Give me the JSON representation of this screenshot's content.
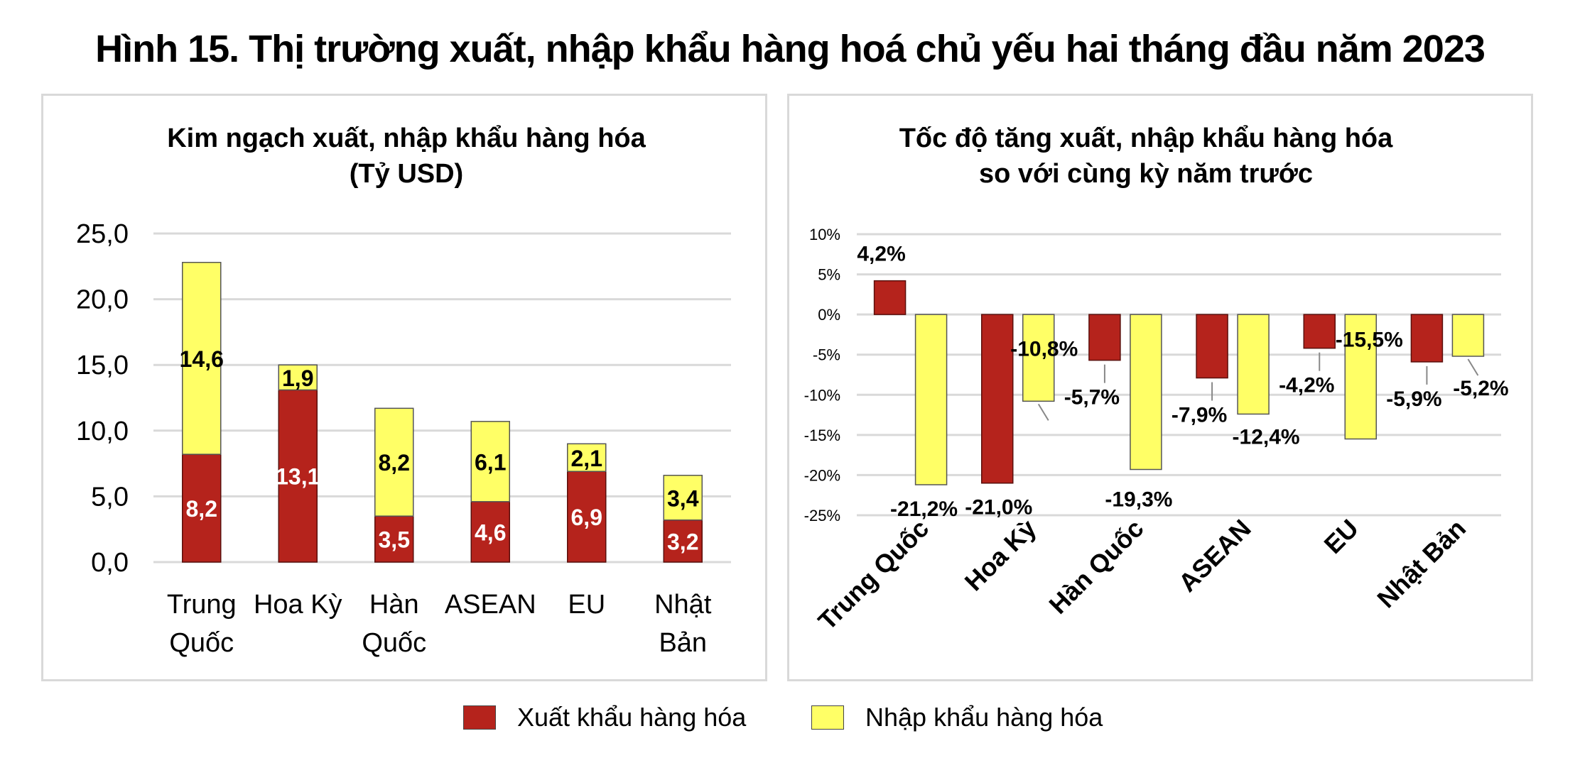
{
  "title": "Hình 15. Thị trường xuất, nhập khẩu hàng hoá chủ yếu hai tháng đầu năm 2023",
  "colors": {
    "export": "#B5231C",
    "import": "#FFFF66",
    "grid": "#d9d9d9",
    "border": "#d9d9d9"
  },
  "legend": {
    "export_label": "Xuất khẩu hàng hóa",
    "import_label": "Nhập khẩu hàng hóa"
  },
  "chart_data": [
    {
      "type": "bar",
      "stacked": true,
      "title": "Kim ngạch xuất, nhập khẩu hàng hóa",
      "subtitle": "(Tỷ USD)",
      "categories": [
        [
          "Trung",
          "Quốc"
        ],
        [
          "Hoa Kỳ"
        ],
        [
          "Hàn",
          "Quốc"
        ],
        [
          "ASEAN"
        ],
        [
          "EU"
        ],
        [
          "Nhật",
          "Bản"
        ]
      ],
      "series": [
        {
          "name": "Xuất khẩu hàng hóa",
          "values": [
            8.2,
            13.1,
            3.5,
            4.6,
            6.9,
            3.2
          ],
          "labels": [
            "8,2",
            "13,1",
            "3,5",
            "4,6",
            "6,9",
            "3,2"
          ]
        },
        {
          "name": "Nhập khẩu hàng hóa",
          "values": [
            14.6,
            1.9,
            8.2,
            6.1,
            2.1,
            3.4
          ],
          "labels": [
            "14,6",
            "1,9",
            "8,2",
            "6,1",
            "2,1",
            "3,4"
          ]
        }
      ],
      "ylim": [
        0,
        25
      ],
      "yticks": [
        0,
        5,
        10,
        15,
        20,
        25
      ],
      "yticklabels": [
        "0,0",
        "5,0",
        "10,0",
        "15,0",
        "20,0",
        "25,0"
      ],
      "grid": true
    },
    {
      "type": "bar",
      "stacked": false,
      "title": "Tốc độ tăng xuất, nhập khẩu hàng hóa",
      "subtitle": "so với cùng kỳ năm trước",
      "categories": [
        "Trung Quốc",
        "Hoa Kỳ",
        "Hàn Quốc",
        "ASEAN",
        "EU",
        "Nhật Bản"
      ],
      "series": [
        {
          "name": "Xuất khẩu hàng hóa",
          "values": [
            4.2,
            -21.0,
            -5.7,
            -7.9,
            -4.2,
            -5.9
          ],
          "labels": [
            "4,2%",
            "-21,0%",
            "-5,7%",
            "-7,9%",
            "-4,2%",
            "-5,9%"
          ]
        },
        {
          "name": "Nhập khẩu hàng hóa",
          "values": [
            -21.2,
            -10.8,
            -19.3,
            -12.4,
            -15.5,
            -5.2
          ],
          "labels": [
            "-21,2%",
            "-10,8%",
            "-19,3%",
            "-12,4%",
            "-15,5%",
            "-5,2%"
          ]
        }
      ],
      "ylim": [
        -25,
        10
      ],
      "yticks": [
        -25,
        -20,
        -15,
        -10,
        -5,
        0,
        5,
        10
      ],
      "yticklabels": [
        "-25%",
        "-20%",
        "-15%",
        "-10%",
        "-5%",
        "0%",
        "5%",
        "10%"
      ],
      "grid": true
    }
  ]
}
